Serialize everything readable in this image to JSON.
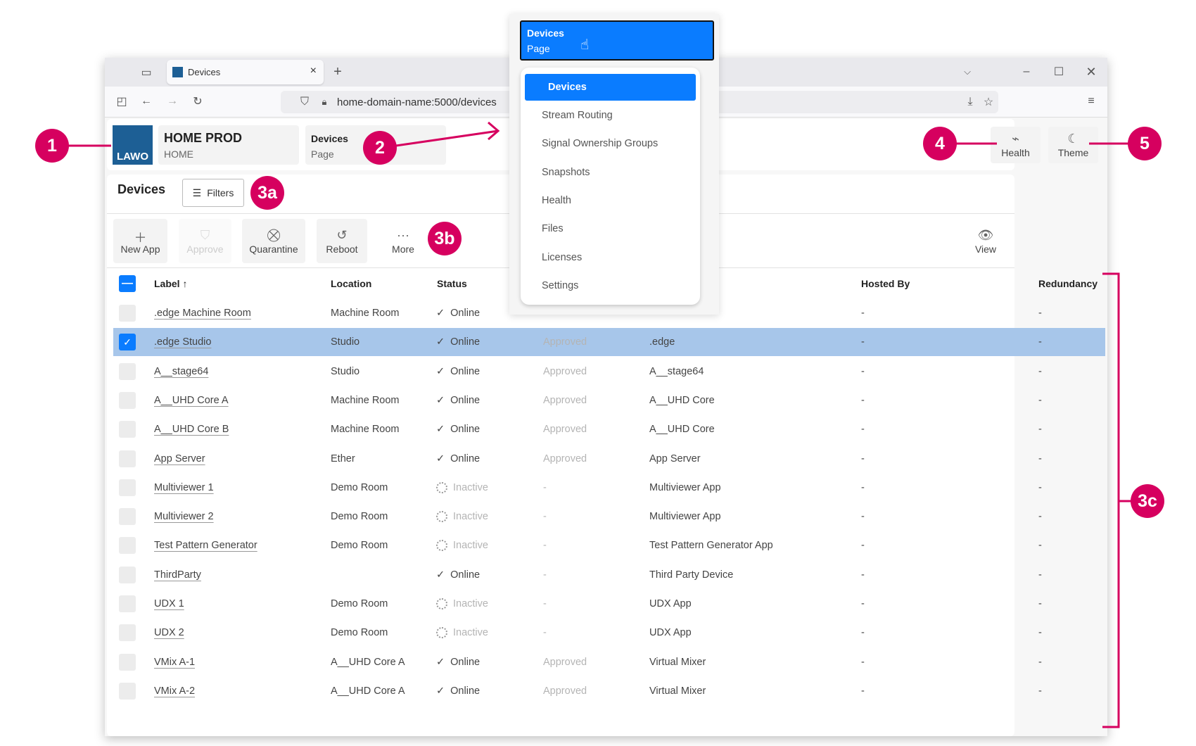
{
  "browser": {
    "tab_title": "Devices",
    "url": "home-domain-name:5000/devices",
    "new_tab": "+",
    "tab_close": "×"
  },
  "header": {
    "logo_text": "LAWO",
    "project_title": "HOME PROD",
    "project_subtitle": "HOME",
    "page_title": "Devices",
    "page_subtitle": "Page",
    "health_label": "Health",
    "theme_label": "Theme"
  },
  "page": {
    "title": "Devices",
    "filters_label": "Filters"
  },
  "toolbar": {
    "new_app": "New App",
    "approve": "Approve",
    "quarantine": "Quarantine",
    "reboot": "Reboot",
    "more": "More",
    "view": "View"
  },
  "table": {
    "headers": {
      "label": "Label",
      "sort_arrow": "↑",
      "location": "Location",
      "status": "Status",
      "hosted_by": "Hosted By",
      "redundancy": "Redundancy"
    },
    "rows": [
      {
        "label": ".edge Machine Room",
        "location": "Machine Room",
        "status": "Online",
        "approval": "",
        "type": "",
        "hosted_by": "-",
        "redundancy": "-",
        "selected": false
      },
      {
        "label": ".edge Studio",
        "location": "Studio",
        "status": "Online",
        "approval": "Approved",
        "type": ".edge",
        "hosted_by": "-",
        "redundancy": "-",
        "selected": true
      },
      {
        "label": "A__stage64",
        "location": "Studio",
        "status": "Online",
        "approval": "Approved",
        "type": "A__stage64",
        "hosted_by": "-",
        "redundancy": "-",
        "selected": false
      },
      {
        "label": "A__UHD Core A",
        "location": "Machine Room",
        "status": "Online",
        "approval": "Approved",
        "type": "A__UHD Core",
        "hosted_by": "-",
        "redundancy": "-",
        "selected": false
      },
      {
        "label": "A__UHD Core B",
        "location": "Machine Room",
        "status": "Online",
        "approval": "Approved",
        "type": "A__UHD Core",
        "hosted_by": "-",
        "redundancy": "-",
        "selected": false
      },
      {
        "label": "App Server",
        "location": "Ether",
        "status": "Online",
        "approval": "Approved",
        "type": "App Server",
        "hosted_by": "-",
        "redundancy": "-",
        "selected": false
      },
      {
        "label": "Multiviewer 1",
        "location": "Demo Room",
        "status": "Inactive",
        "approval": "-",
        "type": "Multiviewer App",
        "hosted_by": "-",
        "redundancy": "-",
        "selected": false
      },
      {
        "label": "Multiviewer 2",
        "location": "Demo Room",
        "status": "Inactive",
        "approval": "-",
        "type": "Multiviewer App",
        "hosted_by": "-",
        "redundancy": "-",
        "selected": false
      },
      {
        "label": "Test Pattern Generator",
        "location": "Demo Room",
        "status": "Inactive",
        "approval": "-",
        "type": "Test Pattern Generator App",
        "hosted_by": "-",
        "redundancy": "-",
        "selected": false
      },
      {
        "label": "ThirdParty",
        "location": "",
        "status": "Online",
        "approval": "-",
        "type": "Third Party Device",
        "hosted_by": "-",
        "redundancy": "-",
        "selected": false
      },
      {
        "label": "UDX 1",
        "location": "Demo Room",
        "status": "Inactive",
        "approval": "-",
        "type": "UDX App",
        "hosted_by": "-",
        "redundancy": "-",
        "selected": false
      },
      {
        "label": "UDX 2",
        "location": "Demo Room",
        "status": "Inactive",
        "approval": "-",
        "type": "UDX App",
        "hosted_by": "-",
        "redundancy": "-",
        "selected": false
      },
      {
        "label": "VMix A-1",
        "location": "A__UHD Core A",
        "status": "Online",
        "approval": "Approved",
        "type": "Virtual Mixer",
        "hosted_by": "-",
        "redundancy": "-",
        "selected": false
      },
      {
        "label": "VMix A-2",
        "location": "A__UHD Core A",
        "status": "Online",
        "approval": "Approved",
        "type": "Virtual Mixer",
        "hosted_by": "-",
        "redundancy": "-",
        "selected": false
      }
    ]
  },
  "dropdown": {
    "trigger_title": "Devices",
    "trigger_subtitle": "Page",
    "items": [
      "Devices",
      "Stream Routing",
      "Signal Ownership Groups",
      "Snapshots",
      "Health",
      "Files",
      "Licenses",
      "Settings"
    ],
    "active_index": 0
  },
  "annotations": {
    "a1": "1",
    "a2": "2",
    "a3a": "3a",
    "a3b": "3b",
    "a3c": "3c",
    "a4": "4",
    "a5": "5"
  },
  "colors": {
    "accent": "#0a7cff",
    "annotation": "#d6005f",
    "selected_row": "#a7c6ea"
  }
}
